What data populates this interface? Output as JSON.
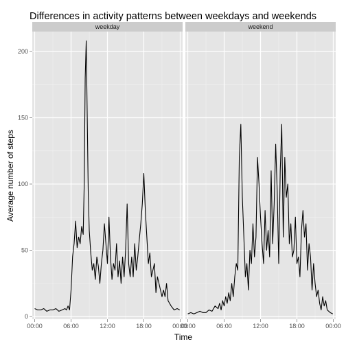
{
  "chart_data": {
    "type": "line",
    "title": "Differences in activity patterns between weekdays and weekends",
    "xlabel": "Time",
    "ylabel": "Average number of steps",
    "x_tick_labels": [
      "00:00",
      "06:00",
      "12:00",
      "18:00",
      "00:00"
    ],
    "x_ticks_hours": [
      0,
      6,
      12,
      18,
      24
    ],
    "xlim_hours": [
      -0.4,
      24.4
    ],
    "y_ticks": [
      0,
      50,
      100,
      150,
      200
    ],
    "ylim": [
      -2,
      215
    ],
    "grid": true,
    "colors": {
      "panel_background": "#e5e5e5",
      "strip_background": "#cccccc",
      "grid_major": "#ffffff",
      "grid_minor": "#f2f2f2",
      "line": "#000000"
    },
    "panels": [
      {
        "strip_label": "weekday",
        "x_hours": [
          0,
          0.5,
          1,
          1.5,
          2,
          2.5,
          3,
          3.5,
          4,
          4.5,
          5,
          5.25,
          5.5,
          5.75,
          6,
          6.25,
          6.5,
          6.75,
          7,
          7.25,
          7.5,
          7.75,
          8,
          8.17,
          8.33,
          8.5,
          8.67,
          8.83,
          9,
          9.25,
          9.5,
          9.75,
          10,
          10.25,
          10.5,
          10.75,
          11,
          11.25,
          11.5,
          11.75,
          12,
          12.25,
          12.5,
          12.75,
          13,
          13.25,
          13.5,
          13.75,
          14,
          14.25,
          14.5,
          14.75,
          15,
          15.25,
          15.5,
          15.75,
          16,
          16.25,
          16.5,
          16.75,
          17,
          17.25,
          17.5,
          17.75,
          18,
          18.25,
          18.5,
          18.75,
          19,
          19.25,
          19.5,
          19.75,
          20,
          20.25,
          20.5,
          20.75,
          21,
          21.25,
          21.5,
          21.75,
          22,
          22.5,
          23,
          23.5,
          23.92
        ],
        "values": [
          6,
          5,
          5,
          6,
          4,
          5,
          5,
          6,
          4,
          5,
          6,
          5,
          8,
          5,
          20,
          45,
          55,
          72,
          52,
          60,
          55,
          68,
          62,
          100,
          180,
          208,
          150,
          95,
          65,
          48,
          35,
          40,
          28,
          45,
          38,
          25,
          40,
          50,
          70,
          55,
          40,
          75,
          45,
          28,
          40,
          35,
          55,
          30,
          42,
          25,
          45,
          30,
          50,
          85,
          40,
          30,
          45,
          30,
          55,
          35,
          45,
          58,
          70,
          85,
          108,
          80,
          60,
          40,
          48,
          30,
          35,
          40,
          18,
          30,
          25,
          20,
          15,
          20,
          15,
          25,
          12,
          8,
          5,
          6,
          5
        ]
      },
      {
        "strip_label": "weekend",
        "x_hours": [
          0,
          0.5,
          1,
          1.5,
          2,
          2.5,
          3,
          3.5,
          4,
          4.5,
          5,
          5.25,
          5.5,
          5.75,
          6,
          6.25,
          6.5,
          6.75,
          7,
          7.25,
          7.5,
          7.75,
          8,
          8.25,
          8.5,
          8.75,
          9,
          9.25,
          9.5,
          9.75,
          10,
          10.25,
          10.5,
          10.75,
          11,
          11.25,
          11.5,
          11.75,
          12,
          12.25,
          12.5,
          12.75,
          13,
          13.25,
          13.5,
          13.75,
          14,
          14.25,
          14.5,
          14.75,
          15,
          15.25,
          15.5,
          15.75,
          16,
          16.25,
          16.5,
          16.75,
          17,
          17.25,
          17.5,
          17.75,
          18,
          18.25,
          18.5,
          18.75,
          19,
          19.25,
          19.5,
          19.75,
          20,
          20.25,
          20.5,
          20.75,
          21,
          21.25,
          21.5,
          21.75,
          22,
          22.25,
          22.5,
          22.75,
          23,
          23.5,
          23.92
        ],
        "values": [
          2,
          3,
          2,
          3,
          4,
          3,
          3,
          5,
          4,
          8,
          6,
          10,
          5,
          12,
          8,
          15,
          10,
          18,
          12,
          25,
          15,
          30,
          40,
          35,
          120,
          145,
          90,
          60,
          30,
          40,
          20,
          50,
          40,
          70,
          45,
          60,
          120,
          100,
          75,
          55,
          40,
          80,
          50,
          65,
          45,
          110,
          55,
          85,
          130,
          95,
          40,
          110,
          145,
          60,
          120,
          90,
          100,
          55,
          70,
          45,
          50,
          75,
          40,
          45,
          30,
          65,
          80,
          60,
          70,
          35,
          55,
          45,
          20,
          40,
          25,
          15,
          20,
          10,
          5,
          15,
          8,
          12,
          5,
          3,
          2
        ]
      }
    ]
  }
}
